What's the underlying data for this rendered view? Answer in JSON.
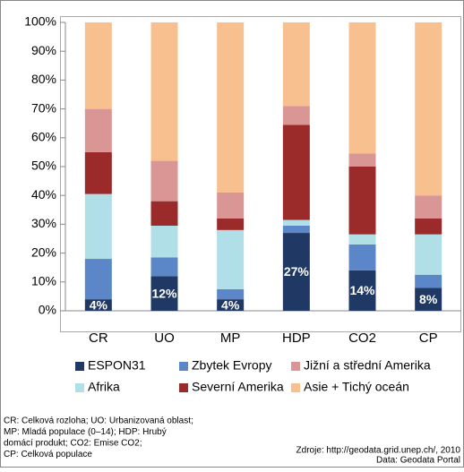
{
  "chart_data": {
    "type": "stacked_bar",
    "categories": [
      "CR",
      "UO",
      "MP",
      "HDP",
      "CO2",
      "CP"
    ],
    "series": [
      {
        "name": "ESPON31",
        "color": "#1f3864",
        "values": [
          4,
          12,
          4,
          27,
          14,
          8
        ],
        "value_labels": [
          "4%",
          "12%",
          "4%",
          "27%",
          "14%",
          "8%"
        ]
      },
      {
        "name": "Zbytek Evropy",
        "color": "#5b87c9",
        "values": [
          14,
          6.5,
          3.5,
          2.5,
          9,
          4.5
        ]
      },
      {
        "name": "Afrika",
        "color": "#b0dfe8",
        "values": [
          22.5,
          11,
          20.5,
          2,
          3.5,
          14
        ]
      },
      {
        "name": "Severní Amerika",
        "color": "#9b2b2b",
        "values": [
          14.5,
          8.5,
          4,
          33,
          23.5,
          5.5
        ]
      },
      {
        "name": "Jižní a střední Amerika",
        "color": "#d99694",
        "values": [
          15,
          14,
          9,
          6.5,
          4.5,
          8
        ]
      },
      {
        "name": "Asie + Tichý oceán",
        "color": "#f9c08f",
        "values": [
          30,
          48,
          59,
          29,
          45.5,
          60
        ]
      }
    ],
    "ylim": [
      0,
      100
    ],
    "yticks": [
      {
        "value": 0,
        "label": "0%"
      },
      {
        "value": 10,
        "label": "10%"
      },
      {
        "value": 20,
        "label": "20%"
      },
      {
        "value": 30,
        "label": "30%"
      },
      {
        "value": 40,
        "label": "40%"
      },
      {
        "value": 50,
        "label": "50%"
      },
      {
        "value": 60,
        "label": "60%"
      },
      {
        "value": 70,
        "label": "70%"
      },
      {
        "value": 80,
        "label": "80%"
      },
      {
        "value": 90,
        "label": "90%"
      },
      {
        "value": 100,
        "label": "100%"
      }
    ],
    "notes_left": [
      "CR: Celková rozloha; UO: Urbanizovaná oblast;",
      "MP: Mladá populace (0–14); HDP: Hrubý",
      "domácí produkt; CO2: Emise CO2;",
      "CP: Celková populace"
    ],
    "notes_right": [
      "Zdroje: http://geodata.grid.unep.ch/, 2010",
      "Data: Geodata Portal"
    ]
  }
}
